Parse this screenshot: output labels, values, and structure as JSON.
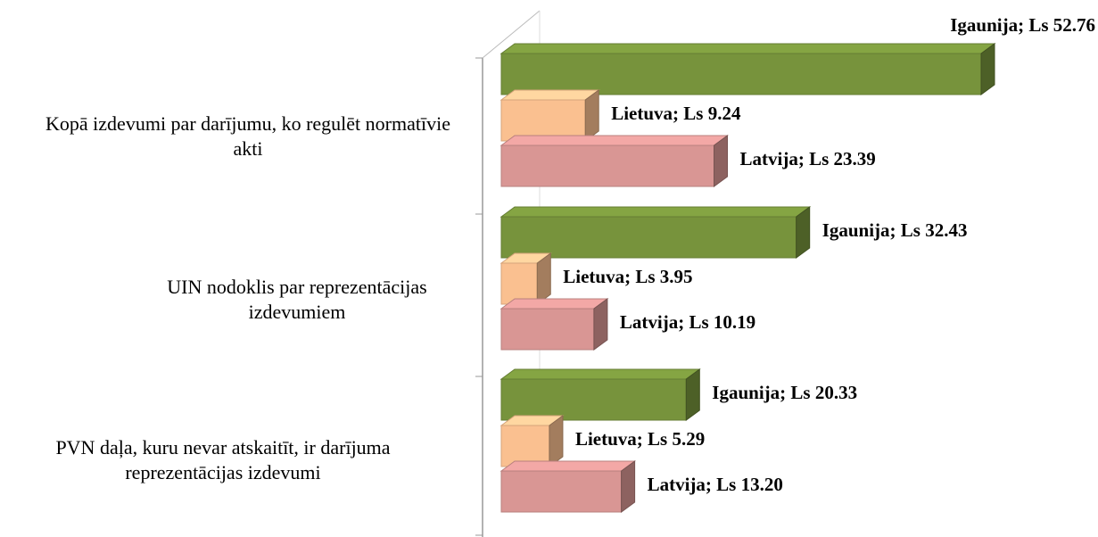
{
  "chart_data": {
    "type": "bar3d",
    "categories": [
      "Kopā izdevumi par darījumu, ko regulēt normatīvie akti",
      "UIN nodoklis par reprezentācijas izdevumiem",
      "PVN daļa, kuru nevar atskaitīt, ir darījuma reprezentācijas izdevumi"
    ],
    "series": [
      {
        "name": "Igaunija",
        "color": "#77933c",
        "values": [
          52.76,
          32.43,
          20.33
        ],
        "value_labels": [
          "Igaunija; Ls 52.76",
          "Igaunija; Ls 32.43",
          "Igaunija; Ls 20.33"
        ]
      },
      {
        "name": "Lietuva",
        "color": "#fac090",
        "values": [
          9.24,
          3.95,
          5.29
        ],
        "value_labels": [
          "Lietuva; Ls 9.24",
          "Lietuva; Ls 3.95",
          "Lietuva; Ls 5.29"
        ]
      },
      {
        "name": "Latvija",
        "color": "#d99694",
        "values": [
          23.39,
          10.19,
          13.2
        ],
        "value_labels": [
          "Latvija; Ls 23.39",
          "Latvija; Ls 10.19",
          "Latvija; Ls 13.20"
        ]
      }
    ]
  }
}
